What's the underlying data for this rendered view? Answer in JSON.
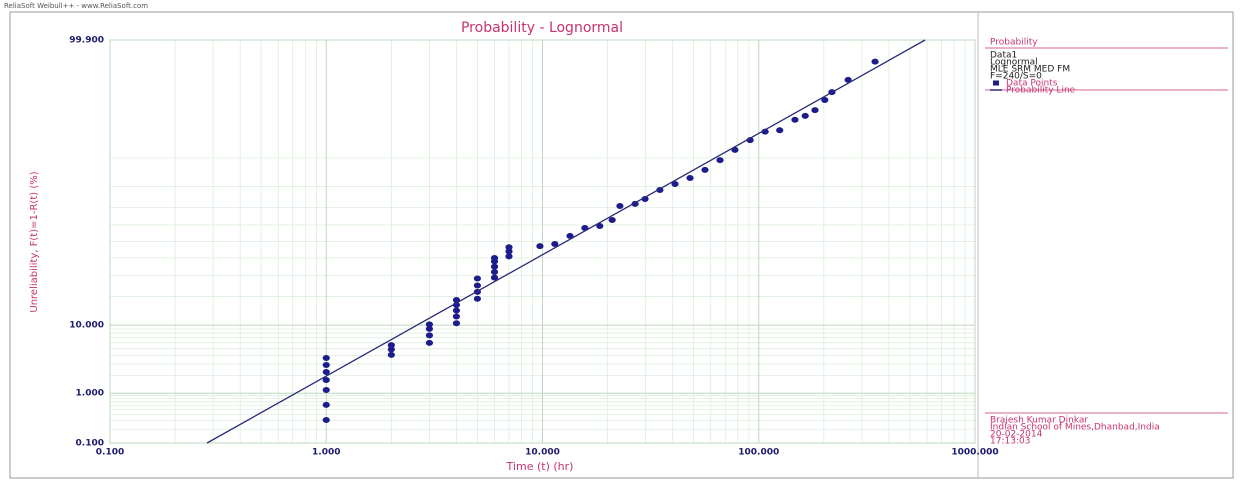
{
  "header": "ReliaSoft Weibull++ - www.ReliaSoft.com",
  "chart_data": {
    "type": "scatter",
    "title": "Probability - Lognormal",
    "xlabel": "Time (t) (hr)",
    "ylabel": "Unreliability, F(t)=1-R(t) (%)",
    "xscale": "log",
    "yscale": "lognormal-probability",
    "xlim": [
      0.1,
      1000
    ],
    "ylim": [
      0.1,
      99.9
    ],
    "xticks": [
      {
        "value": 0.1,
        "label": "0.100"
      },
      {
        "value": 1,
        "label": "1.000"
      },
      {
        "value": 10,
        "label": "10.000"
      },
      {
        "value": 100,
        "label": "100.000"
      },
      {
        "value": 1000,
        "label": "1000.000"
      }
    ],
    "yticks": [
      {
        "value": 0.1,
        "label": "0.100"
      },
      {
        "value": 1,
        "label": "1.000"
      },
      {
        "value": 10,
        "label": "10.000"
      },
      {
        "value": 99.9,
        "label": "99.900"
      }
    ],
    "grid": true,
    "series": [
      {
        "name": "Data Points",
        "color": "#1c1c8c",
        "x": [
          1,
          1,
          1,
          1,
          1,
          1,
          1,
          2,
          2,
          2,
          3,
          3,
          3,
          3,
          4,
          4,
          4,
          4,
          4,
          5,
          5,
          5,
          5,
          6,
          6,
          6,
          6,
          6,
          7,
          7,
          7,
          9.73,
          11.4,
          13.4,
          15.7,
          18.4,
          21.0,
          22.8,
          26.8,
          29.8,
          34.9,
          41.0,
          48.1,
          56.4,
          66.2,
          77.6,
          91.2,
          107,
          125,
          147,
          164,
          182,
          202,
          218,
          259,
          345
        ],
        "values": [
          0.31,
          0.61,
          1.14,
          1.68,
          2.27,
          2.91,
          3.7,
          4.1,
          4.9,
          5.6,
          6,
          7.5,
          9,
          10.2,
          10.5,
          12.5,
          14.5,
          16.5,
          18.5,
          19,
          22,
          25,
          28.5,
          29,
          32,
          35,
          38,
          40,
          41,
          44,
          46.5,
          47.2,
          48.5,
          53.4,
          58.2,
          59.4,
          62.9,
          70.7,
          71.8,
          74.3,
          78.5,
          81.1,
          83.5,
          86.4,
          89.4,
          92.0,
          94.0,
          95.4,
          95.6,
          96.9,
          97.3,
          97.8,
          98.5,
          98.9,
          99.34,
          99.71
        ]
      },
      {
        "name": "Probability Line",
        "color": "#2b2b7b",
        "style": "line",
        "x": [
          0.281,
          588
        ],
        "values": [
          0.1,
          99.9
        ]
      }
    ]
  },
  "legend": {
    "title": "Probability",
    "lines": [
      "Data1",
      "Lognormal",
      "MLE SRM MED FM",
      "F=240/S=0"
    ]
  },
  "footer": {
    "lines": [
      "Brajesh Kumar Dinkar",
      "Indian School of Mines,Dhanbad,India",
      "20-02-2014",
      "17:13:03"
    ]
  }
}
